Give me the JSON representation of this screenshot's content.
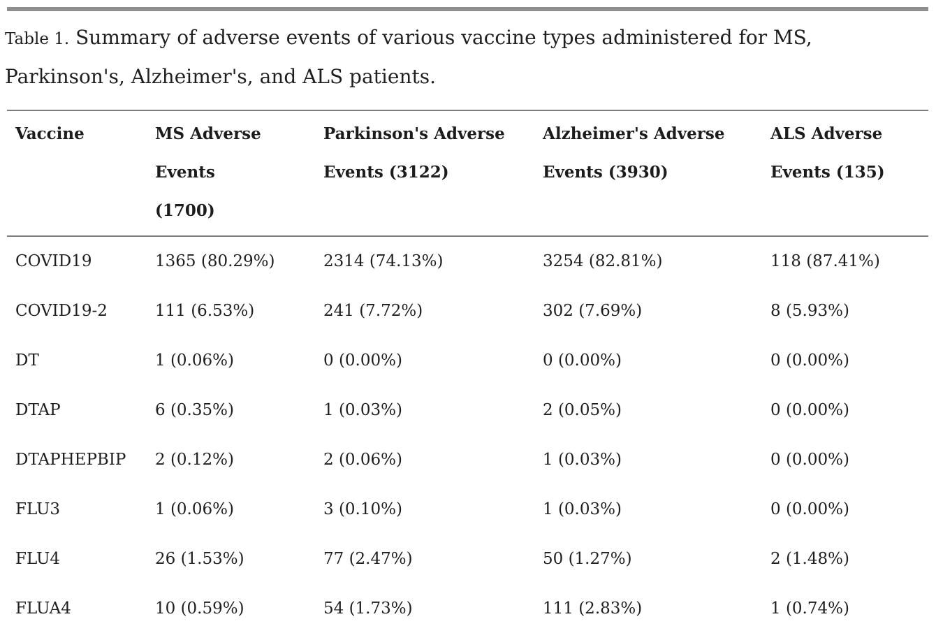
{
  "page": {
    "background_color": "#ffffff",
    "text_color": "#1a1a1a",
    "rule_color": "#7d7d7d",
    "top_bar_color": "#8f8f8f"
  },
  "caption": {
    "label": "Table 1.",
    "text": " Summary of adverse events of various vaccine types administered for MS, Parkinson's, Alzheimer's, and ALS patients."
  },
  "table": {
    "columns": [
      "Vaccine",
      "MS Adverse Events (1700)",
      "Parkinson's Adverse Events (3122)",
      "Alzheimer's Adverse Events (3930)",
      "ALS Adverse Events (135)"
    ],
    "rows": [
      {
        "vaccine": "COVID19",
        "values": [
          "1365 (80.29%)",
          "2314 (74.13%)",
          "3254 (82.81%)",
          "118 (87.41%)"
        ]
      },
      {
        "vaccine": "COVID19-2",
        "values": [
          "111 (6.53%)",
          "241 (7.72%)",
          "302 (7.69%)",
          "8 (5.93%)"
        ]
      },
      {
        "vaccine": "DT",
        "values": [
          "1 (0.06%)",
          "0 (0.00%)",
          "0 (0.00%)",
          "0 (0.00%)"
        ]
      },
      {
        "vaccine": "DTAP",
        "values": [
          "6 (0.35%)",
          "1 (0.03%)",
          "2 (0.05%)",
          "0 (0.00%)"
        ]
      },
      {
        "vaccine": "DTAPHEPBIP",
        "values": [
          "2 (0.12%)",
          "2 (0.06%)",
          "1 (0.03%)",
          "0 (0.00%)"
        ]
      },
      {
        "vaccine": "FLU3",
        "values": [
          "1 (0.06%)",
          "3 (0.10%)",
          "1 (0.03%)",
          "0 (0.00%)"
        ]
      },
      {
        "vaccine": "FLU4",
        "values": [
          "26 (1.53%)",
          "77 (2.47%)",
          "50 (1.27%)",
          "2 (1.48%)"
        ]
      },
      {
        "vaccine": "FLUA4",
        "values": [
          "10 (0.59%)",
          "54 (1.73%)",
          "111 (2.83%)",
          "1 (0.74%)"
        ]
      }
    ]
  }
}
